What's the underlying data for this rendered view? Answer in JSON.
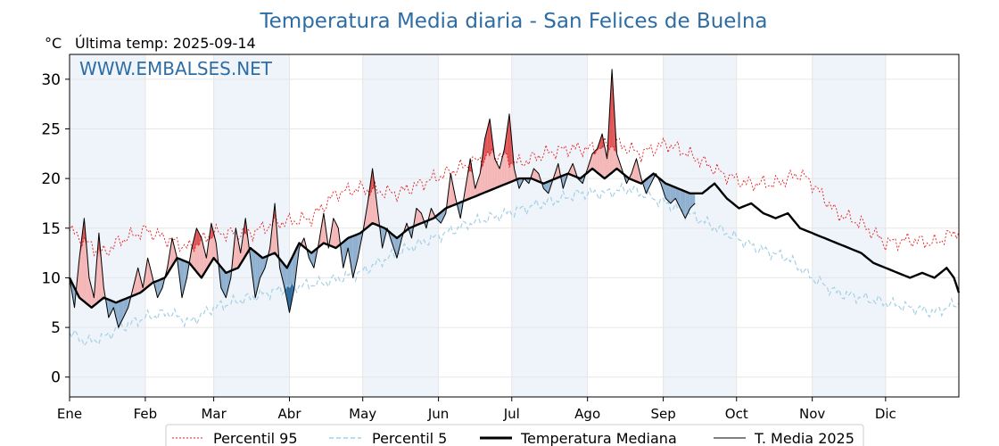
{
  "chart_data": {
    "type": "line",
    "title": "Temperatura Media diaria - San Felices de Buelna",
    "unit_label": "°C",
    "last_temp_label": "Última temp: 2025-09-14",
    "watermark": "WWW.EMBALSES.NET",
    "ylim": [
      -2,
      32.5
    ],
    "yticks": [
      0,
      5,
      10,
      15,
      20,
      25,
      30
    ],
    "months": [
      "Ene",
      "Feb",
      "Mar",
      "Abr",
      "May",
      "Jun",
      "Jul",
      "Ago",
      "Sep",
      "Oct",
      "Nov",
      "Dic"
    ],
    "grid": true,
    "legend_position": "bottom",
    "colors": {
      "title": "#2e6da4",
      "p95": "#e41a1c",
      "p5": "#a6d0e4",
      "median": "#000000",
      "current": "#000000",
      "above_fill": "#f4b6b6",
      "above_fill_strong": "#e05555",
      "below_fill": "#8fb0cf",
      "below_fill_strong": "#2f6b9e",
      "band": "#eef4fa"
    },
    "series": [
      {
        "name": "Percentil 95",
        "style": "dotted-red",
        "keypoints": [
          [
            1,
            14.8
          ],
          [
            8,
            13.5
          ],
          [
            15,
            12.5
          ],
          [
            22,
            13.8
          ],
          [
            32,
            14.8
          ],
          [
            40,
            14.0
          ],
          [
            50,
            13.0
          ],
          [
            60,
            14.5
          ],
          [
            75,
            14.5
          ],
          [
            85,
            15.5
          ],
          [
            100,
            16.0
          ],
          [
            110,
            18.5
          ],
          [
            120,
            19.0
          ],
          [
            135,
            18.5
          ],
          [
            150,
            20.0
          ],
          [
            165,
            21.5
          ],
          [
            175,
            22.5
          ],
          [
            185,
            21.5
          ],
          [
            195,
            22.5
          ],
          [
            205,
            23.0
          ],
          [
            215,
            23.0
          ],
          [
            225,
            23.5
          ],
          [
            235,
            22.5
          ],
          [
            245,
            23.5
          ],
          [
            250,
            23.0
          ],
          [
            258,
            22.0
          ],
          [
            268,
            20.5
          ],
          [
            278,
            19.5
          ],
          [
            290,
            19.5
          ],
          [
            300,
            20.5
          ],
          [
            305,
            19.5
          ],
          [
            315,
            16.5
          ],
          [
            325,
            15.5
          ],
          [
            335,
            13.5
          ],
          [
            345,
            13.8
          ],
          [
            355,
            13.5
          ],
          [
            365,
            14.8
          ]
        ]
      },
      {
        "name": "Percentil 5",
        "style": "dashed-lightblue",
        "keypoints": [
          [
            1,
            4.5
          ],
          [
            8,
            3.5
          ],
          [
            15,
            4.0
          ],
          [
            22,
            5.0
          ],
          [
            32,
            6.0
          ],
          [
            42,
            6.5
          ],
          [
            50,
            5.5
          ],
          [
            60,
            7.0
          ],
          [
            75,
            8.0
          ],
          [
            90,
            9.0
          ],
          [
            105,
            9.5
          ],
          [
            120,
            10.5
          ],
          [
            135,
            12.5
          ],
          [
            150,
            14.0
          ],
          [
            165,
            15.5
          ],
          [
            180,
            16.5
          ],
          [
            195,
            17.5
          ],
          [
            210,
            18.5
          ],
          [
            220,
            18.5
          ],
          [
            230,
            19.0
          ],
          [
            245,
            17.5
          ],
          [
            258,
            16.0
          ],
          [
            270,
            14.5
          ],
          [
            282,
            13.0
          ],
          [
            295,
            12.0
          ],
          [
            305,
            10.0
          ],
          [
            315,
            8.5
          ],
          [
            325,
            8.0
          ],
          [
            335,
            7.5
          ],
          [
            345,
            7.0
          ],
          [
            355,
            6.5
          ],
          [
            365,
            7.5
          ]
        ]
      },
      {
        "name": "Temperatura Mediana",
        "style": "thick-black",
        "keypoints": [
          [
            1,
            10.0
          ],
          [
            5,
            8.0
          ],
          [
            10,
            7.0
          ],
          [
            15,
            8.0
          ],
          [
            20,
            7.5
          ],
          [
            25,
            8.0
          ],
          [
            30,
            8.5
          ],
          [
            35,
            9.5
          ],
          [
            40,
            10.0
          ],
          [
            45,
            12.0
          ],
          [
            50,
            11.5
          ],
          [
            55,
            10.0
          ],
          [
            60,
            12.0
          ],
          [
            65,
            10.5
          ],
          [
            70,
            11.0
          ],
          [
            75,
            13.0
          ],
          [
            80,
            12.0
          ],
          [
            85,
            12.5
          ],
          [
            90,
            11.0
          ],
          [
            95,
            13.5
          ],
          [
            100,
            12.5
          ],
          [
            105,
            13.5
          ],
          [
            110,
            13.0
          ],
          [
            115,
            14.0
          ],
          [
            120,
            14.5
          ],
          [
            125,
            15.5
          ],
          [
            130,
            15.0
          ],
          [
            135,
            14.0
          ],
          [
            140,
            15.0
          ],
          [
            145,
            15.5
          ],
          [
            150,
            16.0
          ],
          [
            155,
            17.0
          ],
          [
            160,
            17.5
          ],
          [
            165,
            18.0
          ],
          [
            170,
            18.5
          ],
          [
            175,
            19.0
          ],
          [
            180,
            19.5
          ],
          [
            185,
            20.0
          ],
          [
            190,
            20.0
          ],
          [
            195,
            19.5
          ],
          [
            200,
            20.0
          ],
          [
            205,
            20.5
          ],
          [
            210,
            20.0
          ],
          [
            215,
            21.0
          ],
          [
            220,
            20.0
          ],
          [
            225,
            21.0
          ],
          [
            230,
            20.0
          ],
          [
            235,
            19.5
          ],
          [
            240,
            20.5
          ],
          [
            245,
            19.5
          ],
          [
            250,
            19.0
          ],
          [
            255,
            18.5
          ],
          [
            260,
            18.5
          ],
          [
            265,
            19.5
          ],
          [
            270,
            18.0
          ],
          [
            275,
            17.0
          ],
          [
            280,
            17.5
          ],
          [
            285,
            16.5
          ],
          [
            290,
            16.0
          ],
          [
            295,
            16.5
          ],
          [
            300,
            15.0
          ],
          [
            305,
            14.5
          ],
          [
            310,
            14.0
          ],
          [
            315,
            13.5
          ],
          [
            320,
            13.0
          ],
          [
            325,
            12.5
          ],
          [
            330,
            11.5
          ],
          [
            335,
            11.0
          ],
          [
            340,
            10.5
          ],
          [
            345,
            10.0
          ],
          [
            350,
            10.5
          ],
          [
            355,
            10.0
          ],
          [
            360,
            11.0
          ],
          [
            363,
            10.0
          ],
          [
            365,
            8.5
          ]
        ]
      },
      {
        "name": "T. Media 2025",
        "style": "thin-black",
        "keypoints": [
          [
            1,
            10.0
          ],
          [
            3,
            7.0
          ],
          [
            5,
            12.0
          ],
          [
            7,
            16.0
          ],
          [
            9,
            10.0
          ],
          [
            11,
            8.0
          ],
          [
            13,
            14.5
          ],
          [
            15,
            9.0
          ],
          [
            17,
            6.0
          ],
          [
            19,
            7.0
          ],
          [
            21,
            5.0
          ],
          [
            23,
            6.0
          ],
          [
            25,
            7.0
          ],
          [
            27,
            9.0
          ],
          [
            29,
            11.0
          ],
          [
            31,
            9.0
          ],
          [
            33,
            12.0
          ],
          [
            35,
            10.0
          ],
          [
            37,
            8.0
          ],
          [
            39,
            9.0
          ],
          [
            41,
            11.0
          ],
          [
            43,
            14.0
          ],
          [
            45,
            12.0
          ],
          [
            47,
            8.0
          ],
          [
            49,
            10.0
          ],
          [
            51,
            13.0
          ],
          [
            53,
            15.0
          ],
          [
            55,
            14.0
          ],
          [
            57,
            12.0
          ],
          [
            59,
            15.5
          ],
          [
            61,
            13.5
          ],
          [
            63,
            9.0
          ],
          [
            65,
            8.0
          ],
          [
            67,
            10.0
          ],
          [
            69,
            15.0
          ],
          [
            71,
            12.5
          ],
          [
            73,
            16.0
          ],
          [
            75,
            12.0
          ],
          [
            77,
            8.0
          ],
          [
            79,
            10.0
          ],
          [
            81,
            11.0
          ],
          [
            83,
            13.0
          ],
          [
            85,
            17.5
          ],
          [
            87,
            11.0
          ],
          [
            89,
            9.0
          ],
          [
            91,
            6.5
          ],
          [
            93,
            9.0
          ],
          [
            95,
            13.0
          ],
          [
            97,
            14.0
          ],
          [
            99,
            12.0
          ],
          [
            101,
            11.0
          ],
          [
            103,
            13.5
          ],
          [
            105,
            16.5
          ],
          [
            107,
            13.0
          ],
          [
            109,
            16.0
          ],
          [
            111,
            15.0
          ],
          [
            113,
            11.0
          ],
          [
            115,
            13.0
          ],
          [
            117,
            10.0
          ],
          [
            119,
            12.0
          ],
          [
            121,
            14.5
          ],
          [
            123,
            17.5
          ],
          [
            125,
            21.0
          ],
          [
            127,
            17.0
          ],
          [
            129,
            13.0
          ],
          [
            131,
            15.0
          ],
          [
            133,
            13.5
          ],
          [
            135,
            12.0
          ],
          [
            137,
            14.0
          ],
          [
            139,
            15.5
          ],
          [
            141,
            14.0
          ],
          [
            143,
            17.0
          ],
          [
            145,
            16.5
          ],
          [
            147,
            15.0
          ],
          [
            149,
            17.0
          ],
          [
            151,
            16.0
          ],
          [
            153,
            15.5
          ],
          [
            155,
            16.5
          ],
          [
            157,
            20.5
          ],
          [
            159,
            18.0
          ],
          [
            161,
            16.0
          ],
          [
            163,
            19.0
          ],
          [
            165,
            22.0
          ],
          [
            167,
            19.0
          ],
          [
            169,
            20.5
          ],
          [
            171,
            24.0
          ],
          [
            173,
            26.0
          ],
          [
            175,
            22.0
          ],
          [
            177,
            21.0
          ],
          [
            179,
            23.0
          ],
          [
            181,
            26.5
          ],
          [
            183,
            21.0
          ],
          [
            185,
            19.0
          ],
          [
            187,
            20.0
          ],
          [
            189,
            19.5
          ],
          [
            191,
            21.0
          ],
          [
            193,
            20.5
          ],
          [
            195,
            19.0
          ],
          [
            197,
            18.5
          ],
          [
            199,
            20.0
          ],
          [
            201,
            21.5
          ],
          [
            203,
            19.0
          ],
          [
            205,
            20.5
          ],
          [
            207,
            21.5
          ],
          [
            209,
            20.0
          ],
          [
            211,
            19.5
          ],
          [
            213,
            21.0
          ],
          [
            215,
            22.5
          ],
          [
            217,
            23.0
          ],
          [
            219,
            24.5
          ],
          [
            221,
            22.0
          ],
          [
            223,
            31.0
          ],
          [
            225,
            22.5
          ],
          [
            227,
            21.0
          ],
          [
            229,
            19.5
          ],
          [
            231,
            20.5
          ],
          [
            233,
            22.0
          ],
          [
            235,
            20.0
          ],
          [
            237,
            18.5
          ],
          [
            239,
            19.5
          ],
          [
            241,
            20.5
          ],
          [
            243,
            19.5
          ],
          [
            245,
            18.0
          ],
          [
            247,
            17.5
          ],
          [
            249,
            18.0
          ],
          [
            251,
            17.0
          ],
          [
            253,
            16.0
          ],
          [
            255,
            17.0
          ],
          [
            257,
            17.5
          ]
        ]
      }
    ]
  }
}
